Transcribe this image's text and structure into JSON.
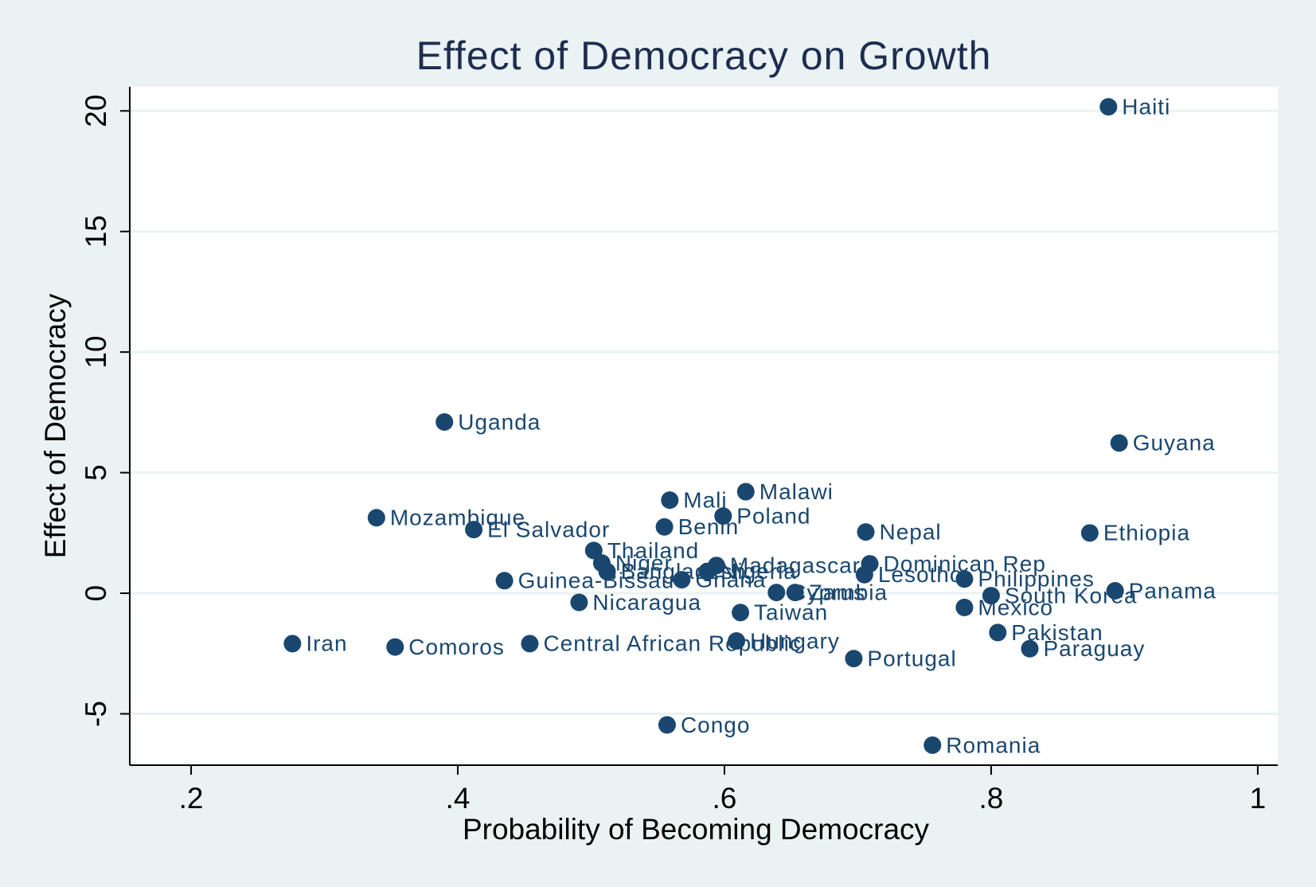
{
  "chart_data": {
    "type": "scatter",
    "title": "Effect of Democracy on Growth",
    "x_label": "Probability of Becoming Democracy",
    "y_label": "Effect of Democracy",
    "color": "#1a476f",
    "grid": true,
    "xlim": [
      0.154,
      1.015
    ],
    "ylim": [
      -7.13,
      21.0
    ],
    "xticks": [
      {
        "value": 0.2,
        "label": ".2"
      },
      {
        "value": 0.4,
        "label": ".4"
      },
      {
        "value": 0.6,
        "label": ".6"
      },
      {
        "value": 0.8,
        "label": ".8"
      },
      1
    ],
    "yticks": [
      -5,
      0,
      5,
      10,
      15,
      20
    ],
    "labels": [
      "Haiti",
      "Guyana",
      "Uganda",
      "Ethiopia",
      "Mozambique",
      "El Salvador",
      "Malawi",
      "Mali",
      "Poland",
      "Benin",
      "Nepal",
      "Thailand",
      "Niger",
      "Bangladesh",
      "Madagascar",
      "Nigeria",
      "Ghana",
      "Guinea-Bissau",
      "Dominican Rep",
      "Lesotho",
      "Philippines",
      "South Korea",
      "Panama",
      "Cyprus",
      "Zambia",
      "Nicaragua",
      "Taiwan",
      "Mexico",
      "Pakistan",
      "Paraguay",
      "Iran",
      "Comoros",
      "Central African Republic",
      "Hungary",
      "Portugal",
      "Congo",
      "Romania"
    ],
    "x": [
      0.888,
      0.896,
      0.39,
      0.874,
      0.339,
      0.412,
      0.616,
      0.559,
      0.599,
      0.555,
      0.706,
      0.502,
      0.508,
      0.512,
      0.594,
      0.587,
      0.568,
      0.435,
      0.709,
      0.705,
      0.78,
      0.8,
      0.893,
      0.639,
      0.653,
      0.491,
      0.612,
      0.78,
      0.805,
      0.829,
      0.276,
      0.353,
      0.454,
      0.609,
      0.697,
      0.557,
      0.756
    ],
    "values": [
      20.17,
      6.23,
      7.1,
      2.5,
      3.13,
      2.64,
      4.21,
      3.86,
      3.2,
      2.75,
      2.54,
      1.77,
      1.25,
      0.9,
      1.15,
      0.9,
      0.56,
      0.52,
      1.22,
      0.77,
      0.59,
      -0.1,
      0.1,
      0.03,
      0.03,
      -0.38,
      -0.8,
      -0.59,
      -1.63,
      -2.3,
      -2.09,
      -2.23,
      -2.09,
      -1.98,
      -2.71,
      -5.46,
      -6.3
    ]
  }
}
